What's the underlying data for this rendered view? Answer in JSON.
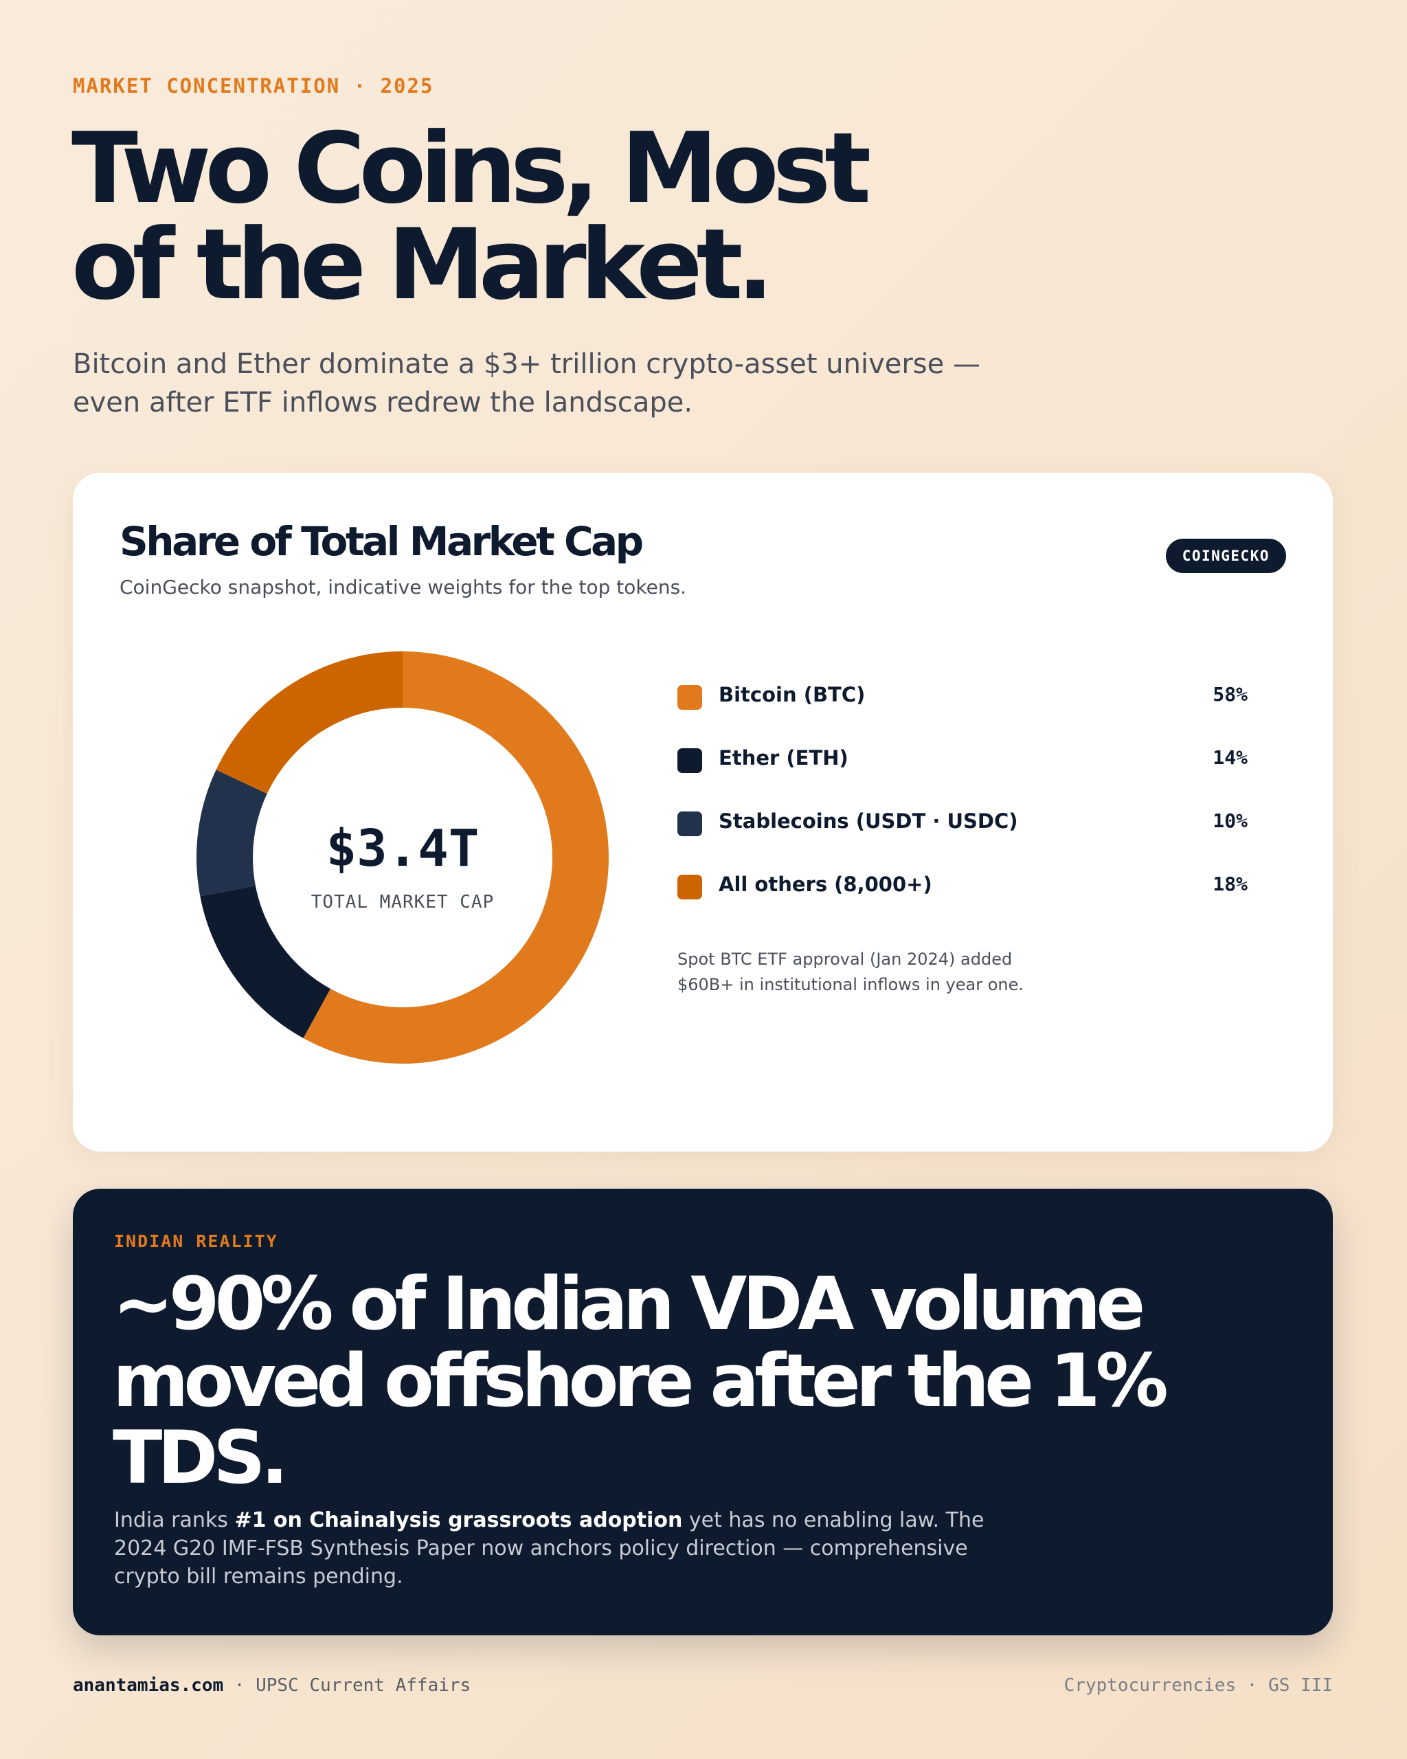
{
  "header": {
    "eyebrow": "MARKET CONCENTRATION · 2025",
    "title_line1": "Two Coins, Most",
    "title_line2": "of the Market.",
    "subtitle_line1": "Bitcoin and Ether dominate a $3+ trillion crypto-asset universe —",
    "subtitle_line2": "even after ETF inflows redrew the landscape."
  },
  "card": {
    "title": "Share of Total Market Cap",
    "subtitle": "CoinGecko snapshot, indicative weights for the top tokens.",
    "badge": "COINGECKO",
    "center_value": "$3.4T",
    "center_label": "TOTAL MARKET CAP",
    "note_line1": "Spot BTC ETF approval (Jan 2024) added",
    "note_line2": "$60B+ in institutional inflows in year one."
  },
  "chart_data": {
    "type": "pie",
    "title": "Share of Total Market Cap",
    "unit": "%",
    "slices": [
      {
        "label": "Bitcoin (BTC)",
        "value": 58,
        "display": "58%",
        "color": "#e07a1c"
      },
      {
        "label": "Ether (ETH)",
        "value": 14,
        "display": "14%",
        "color": "#0e1a2e"
      },
      {
        "label": "Stablecoins (USDT · USDC)",
        "value": 10,
        "display": "10%",
        "color": "#22324d"
      },
      {
        "label": "All others (8,000+)",
        "value": 18,
        "display": "18%",
        "color": "#cc6500"
      }
    ]
  },
  "insight": {
    "eyebrow": "INDIAN REALITY",
    "headline_line1": "~90% of Indian VDA volume",
    "headline_line2": "moved offshore after the 1% TDS.",
    "body_prefix": "India ranks ",
    "body_bold": "#1 on Chainalysis grassroots adoption",
    "body_suffix": " yet has no enabling law. The 2024 G20 IMF-FSB Synthesis Paper now anchors policy direction — comprehensive crypto bill remains pending."
  },
  "footer": {
    "site": "anantamias.com",
    "left_suffix": " · UPSC Current Affairs",
    "right": "Cryptocurrencies · GS III"
  },
  "colors": {
    "accent": "#e07a1c",
    "navy": "#0e1a2e",
    "background": "#f8e8d6"
  }
}
